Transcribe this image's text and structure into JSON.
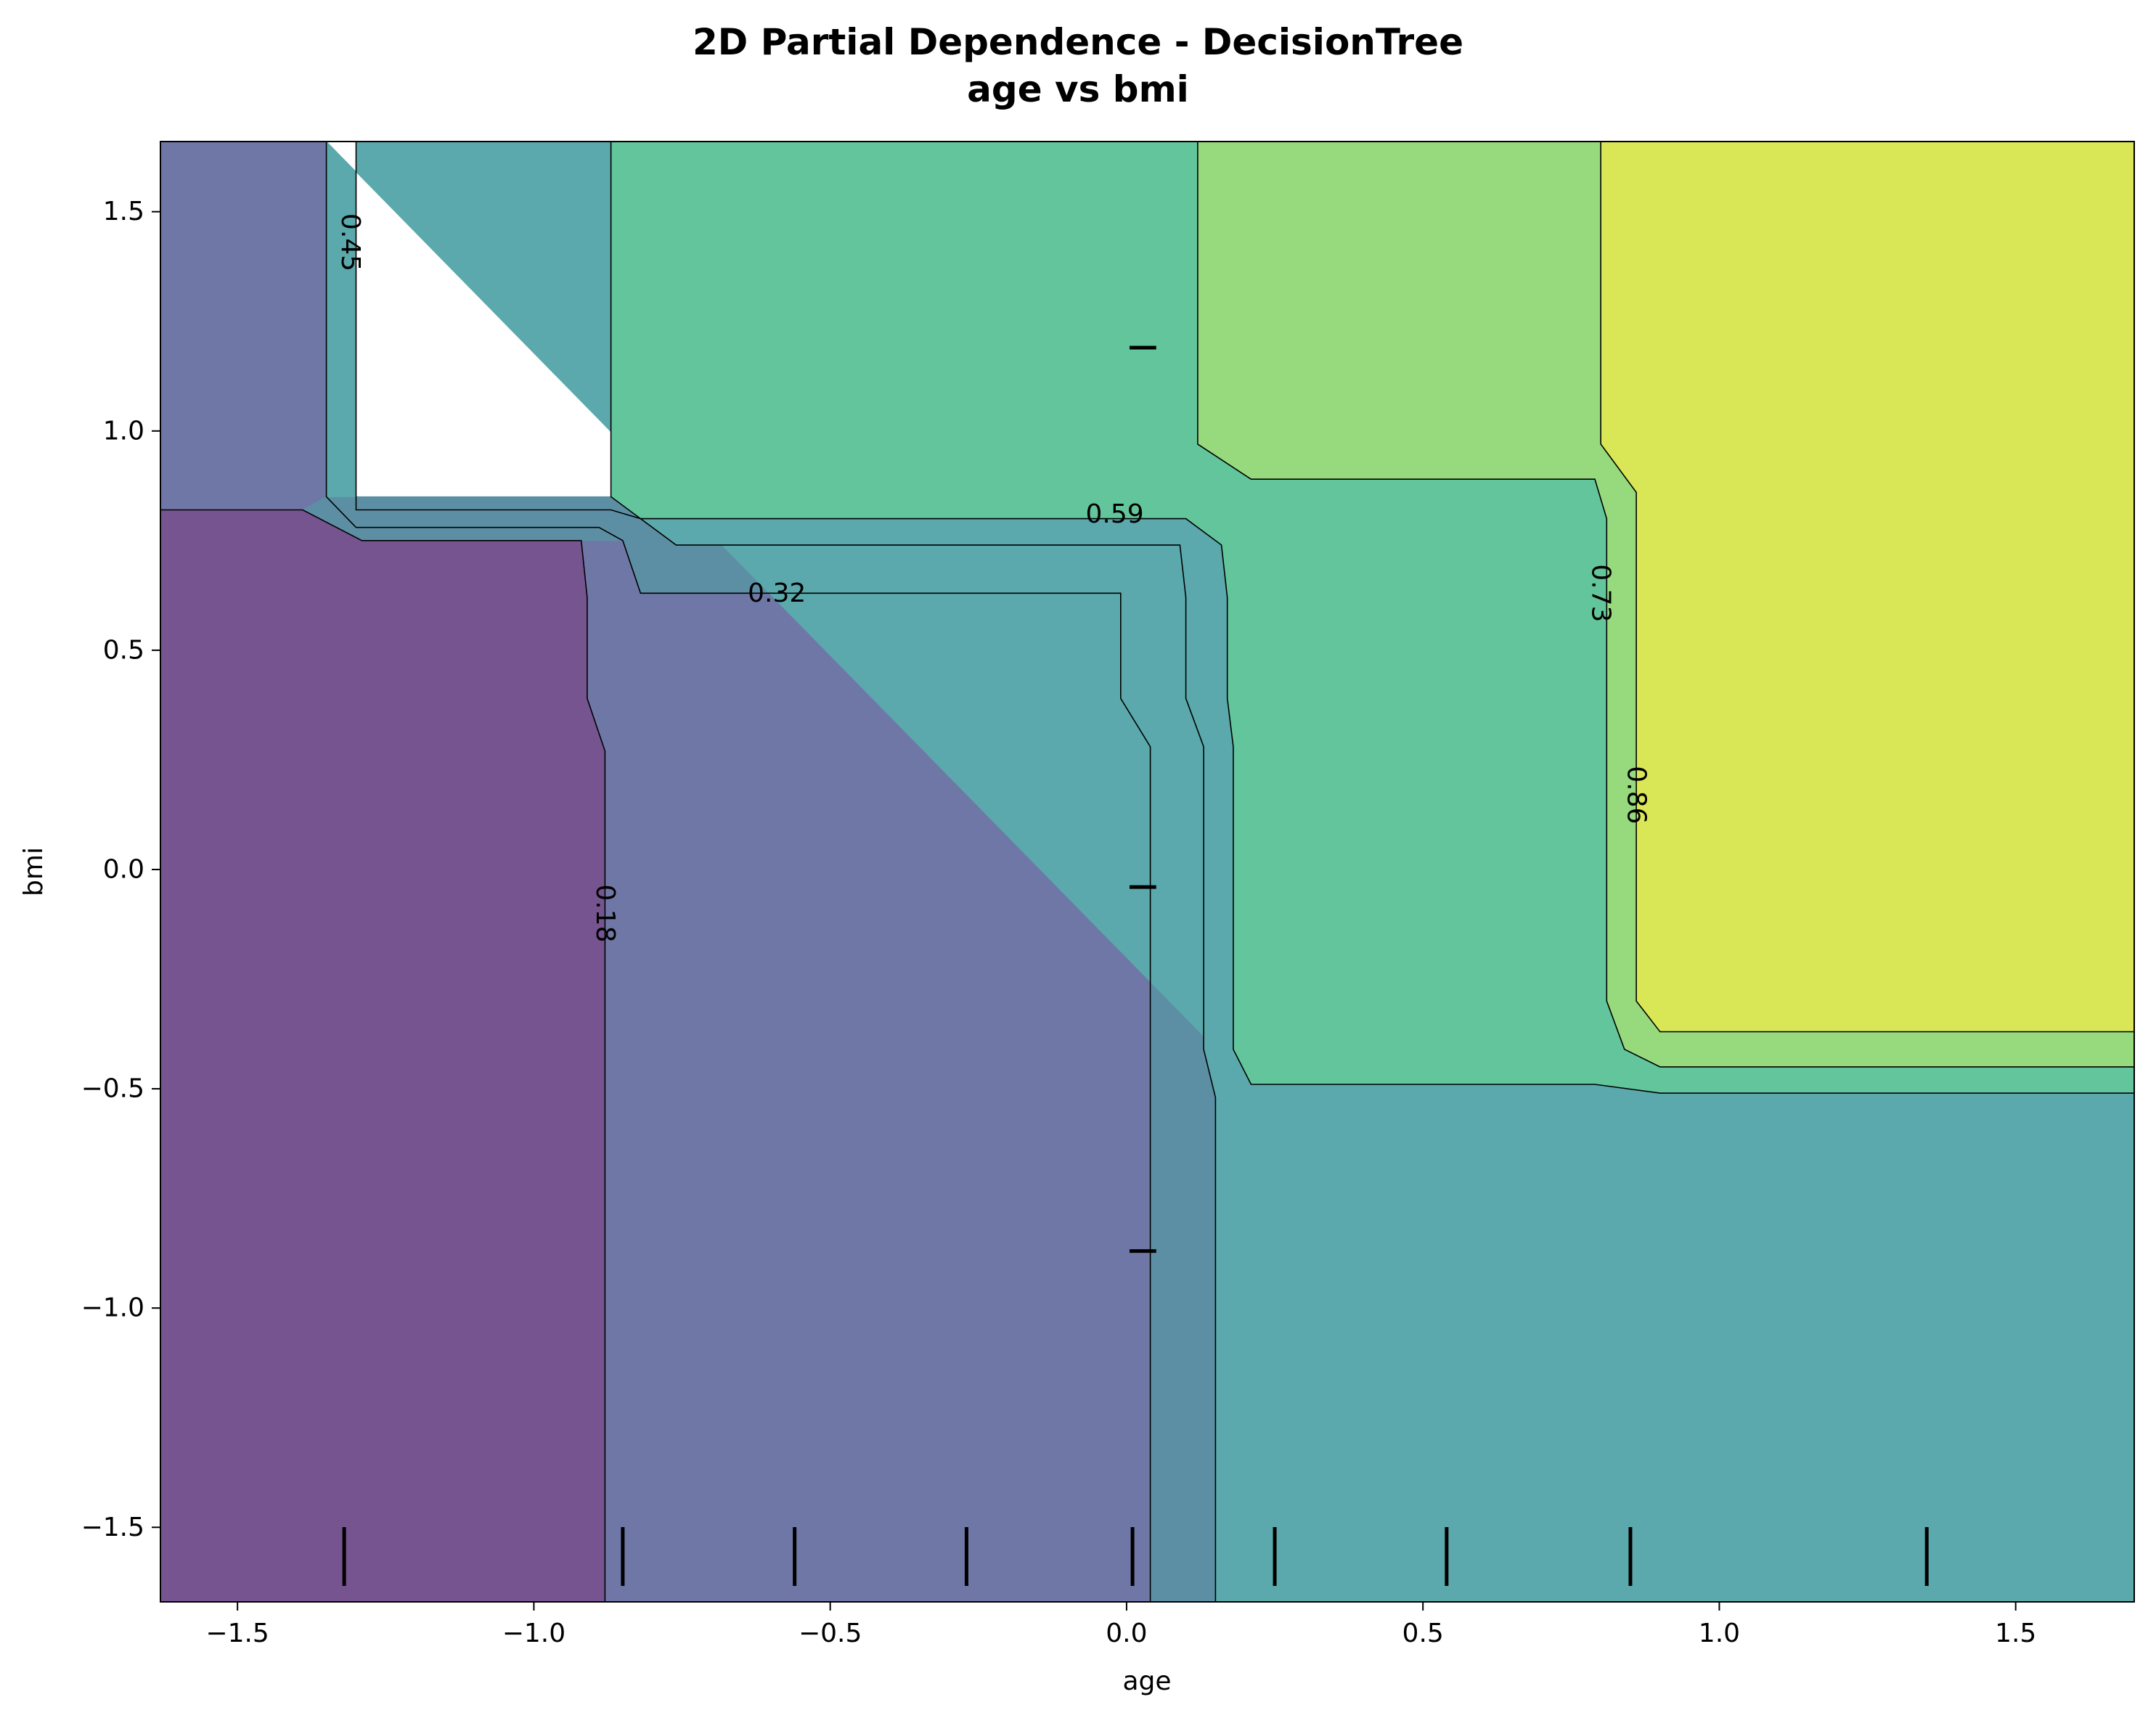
{
  "chart_data": {
    "type": "contour",
    "title_line1": "2D Partial Dependence - DecisionTree",
    "title_line2": "age vs bmi",
    "xlabel": "age",
    "ylabel": "bmi",
    "xlim": [
      -1.63,
      1.7
    ],
    "ylim": [
      -1.67,
      1.66
    ],
    "xticks": [
      -1.5,
      -1.0,
      -0.5,
      0.0,
      0.5,
      1.0,
      1.5
    ],
    "xtick_labels": [
      "−1.5",
      "−1.0",
      "−0.5",
      "0.0",
      "0.5",
      "1.0",
      "1.5"
    ],
    "yticks": [
      -1.5,
      -1.0,
      -0.5,
      0.0,
      0.5,
      1.0,
      1.5
    ],
    "ytick_labels": [
      "−1.5",
      "−1.0",
      "−0.5",
      "0.0",
      "0.5",
      "1.0",
      "1.5"
    ],
    "levels": [
      0.18,
      0.32,
      0.45,
      0.59,
      0.73,
      0.86
    ],
    "contour_labels": [
      {
        "text": "0.18",
        "x": -0.88,
        "y": -0.1,
        "rotation": 90
      },
      {
        "text": "0.32",
        "x": -0.59,
        "y": 0.63,
        "rotation": 0
      },
      {
        "text": "0.45",
        "x": -1.31,
        "y": 1.43,
        "rotation": 90
      },
      {
        "text": "0.59",
        "x": -0.02,
        "y": 0.81,
        "rotation": 0
      },
      {
        "text": "0.73",
        "x": 0.8,
        "y": 0.63,
        "rotation": 90
      },
      {
        "text": "0.86",
        "x": 0.86,
        "y": 0.17,
        "rotation": 90
      }
    ],
    "regions": [
      {
        "value": 0.12,
        "color": "#765490",
        "poly": [
          [
            -1.63,
            -1.67
          ],
          [
            -0.88,
            -1.67
          ],
          [
            -0.88,
            0.27
          ],
          [
            -0.91,
            0.39
          ],
          [
            -0.91,
            0.62
          ],
          [
            -0.92,
            0.75
          ],
          [
            -1.29,
            0.75
          ],
          [
            -1.39,
            0.82
          ],
          [
            -1.63,
            0.82
          ]
        ]
      },
      {
        "value": 0.26,
        "color": "#6F77A6",
        "poly": [
          [
            -0.88,
            -1.67
          ],
          [
            0.04,
            -1.67
          ],
          [
            0.04,
            0.28
          ],
          [
            -0.01,
            0.39
          ],
          [
            -0.01,
            0.63
          ],
          [
            -0.82,
            0.63
          ],
          [
            -0.85,
            0.75
          ],
          [
            -0.92,
            0.75
          ],
          [
            -0.91,
            0.62
          ],
          [
            -0.91,
            0.39
          ],
          [
            -0.88,
            0.27
          ]
        ]
      },
      {
        "value": 0.26,
        "color": "#6F77A6",
        "poly": [
          [
            -1.63,
            0.82
          ],
          [
            -1.39,
            0.82
          ],
          [
            -1.35,
            0.85
          ],
          [
            -1.35,
            1.66
          ],
          [
            -1.63,
            1.66
          ]
        ]
      },
      {
        "value": 0.39,
        "color": "#5D8FA4",
        "poly": [
          [
            0.04,
            -1.67
          ],
          [
            0.15,
            -1.67
          ],
          [
            0.15,
            -0.52
          ],
          [
            0.13,
            -0.41
          ],
          [
            0.13,
            0.28
          ],
          [
            0.1,
            0.39
          ],
          [
            0.1,
            0.62
          ],
          [
            0.09,
            0.74
          ],
          [
            -0.76,
            0.74
          ],
          [
            -0.82,
            0.8
          ],
          [
            -0.87,
            0.85
          ],
          [
            -1.3,
            0.85
          ],
          [
            -1.35,
            0.85
          ],
          [
            -1.39,
            0.82
          ],
          [
            -1.29,
            0.75
          ],
          [
            -0.92,
            0.75
          ],
          [
            -0.85,
            0.75
          ],
          [
            -0.82,
            0.63
          ],
          [
            -0.01,
            0.63
          ],
          [
            -0.01,
            0.39
          ],
          [
            0.04,
            0.28
          ]
        ]
      },
      {
        "value": 0.52,
        "color": "#5BA9AC",
        "poly": [
          [
            0.15,
            -1.67
          ],
          [
            1.7,
            -1.67
          ],
          [
            1.7,
            -0.51
          ],
          [
            0.9,
            -0.51
          ],
          [
            0.79,
            -0.49
          ],
          [
            0.21,
            -0.49
          ],
          [
            0.18,
            -0.41
          ],
          [
            0.18,
            0.28
          ],
          [
            0.17,
            0.39
          ],
          [
            0.17,
            0.62
          ],
          [
            0.16,
            0.74
          ],
          [
            0.1,
            0.8
          ],
          [
            -0.82,
            0.8
          ],
          [
            -0.76,
            0.74
          ],
          [
            0.09,
            0.74
          ],
          [
            0.1,
            0.62
          ],
          [
            0.1,
            0.39
          ],
          [
            0.13,
            0.28
          ],
          [
            0.13,
            -0.41
          ],
          [
            0.15,
            -0.52
          ]
        ]
      },
      {
        "value": 0.52,
        "color": "#5BA9AC",
        "poly": [
          [
            -1.35,
            0.85
          ],
          [
            -1.3,
            0.85
          ],
          [
            -1.3,
            1.66
          ],
          [
            -0.87,
            1.66
          ],
          [
            -0.87,
            0.85
          ],
          [
            -0.82,
            0.8
          ],
          [
            0.1,
            0.8
          ],
          [
            0.16,
            0.74
          ],
          [
            0.17,
            0.62
          ],
          [
            0.17,
            0.39
          ],
          [
            0.18,
            0.28
          ],
          [
            0.18,
            -0.41
          ],
          [
            0.21,
            -0.49
          ],
          [
            0.21,
            -0.49
          ],
          [
            -1.35,
            1.66
          ]
        ]
      },
      {
        "value": 0.66,
        "color": "#63C59B",
        "poly": [
          [
            -0.87,
            1.66
          ],
          [
            0.12,
            1.66
          ],
          [
            0.12,
            0.97
          ],
          [
            0.21,
            0.89
          ],
          [
            0.79,
            0.89
          ],
          [
            0.81,
            0.8
          ],
          [
            0.81,
            -0.3
          ],
          [
            0.84,
            -0.41
          ],
          [
            0.9,
            -0.45
          ],
          [
            1.7,
            -0.45
          ],
          [
            1.7,
            -0.51
          ],
          [
            0.9,
            -0.51
          ],
          [
            0.79,
            -0.49
          ],
          [
            0.21,
            -0.49
          ],
          [
            0.18,
            -0.41
          ],
          [
            0.18,
            0.28
          ],
          [
            0.17,
            0.39
          ],
          [
            0.17,
            0.62
          ],
          [
            0.16,
            0.74
          ],
          [
            0.1,
            0.8
          ],
          [
            -0.82,
            0.8
          ],
          [
            -0.87,
            0.85
          ]
        ]
      },
      {
        "value": 0.79,
        "color": "#97DA7D",
        "poly": [
          [
            0.12,
            1.66
          ],
          [
            0.8,
            1.66
          ],
          [
            0.8,
            0.97
          ],
          [
            0.86,
            0.86
          ],
          [
            0.86,
            -0.3
          ],
          [
            0.9,
            -0.37
          ],
          [
            1.7,
            -0.37
          ],
          [
            1.7,
            -0.45
          ],
          [
            0.9,
            -0.45
          ],
          [
            0.84,
            -0.41
          ],
          [
            0.81,
            -0.3
          ],
          [
            0.81,
            0.8
          ],
          [
            0.79,
            0.89
          ],
          [
            0.21,
            0.89
          ],
          [
            0.12,
            0.97
          ]
        ]
      },
      {
        "value": 0.93,
        "color": "#D9E655",
        "poly": [
          [
            0.8,
            1.66
          ],
          [
            1.7,
            1.66
          ],
          [
            1.7,
            -0.37
          ],
          [
            0.9,
            -0.37
          ],
          [
            0.86,
            -0.3
          ],
          [
            0.86,
            0.86
          ],
          [
            0.8,
            0.97
          ]
        ]
      }
    ],
    "contour_lines": [
      {
        "level": 0.18,
        "points": [
          [
            -0.88,
            -1.67
          ],
          [
            -0.88,
            0.27
          ],
          [
            -0.91,
            0.39
          ],
          [
            -0.91,
            0.62
          ],
          [
            -0.92,
            0.75
          ],
          [
            -1.29,
            0.75
          ],
          [
            -1.39,
            0.82
          ],
          [
            -1.63,
            0.82
          ]
        ]
      },
      {
        "level": 0.32,
        "points": [
          [
            0.04,
            -1.67
          ],
          [
            0.04,
            0.28
          ],
          [
            -0.01,
            0.39
          ],
          [
            -0.01,
            0.63
          ],
          [
            -0.82,
            0.63
          ],
          [
            -0.85,
            0.75
          ],
          [
            -0.89,
            0.78
          ],
          [
            -1.3,
            0.78
          ],
          [
            -1.35,
            0.85
          ],
          [
            -1.35,
            1.66
          ]
        ]
      },
      {
        "level": 0.45,
        "points": [
          [
            0.15,
            -1.67
          ],
          [
            0.15,
            -0.52
          ],
          [
            0.13,
            -0.41
          ],
          [
            0.13,
            0.28
          ],
          [
            0.1,
            0.39
          ],
          [
            0.1,
            0.62
          ],
          [
            0.09,
            0.74
          ],
          [
            -0.76,
            0.74
          ],
          [
            -0.82,
            0.8
          ],
          [
            -0.87,
            0.82
          ],
          [
            -1.3,
            0.82
          ],
          [
            -1.3,
            1.66
          ]
        ]
      },
      {
        "level": 0.59,
        "points": [
          [
            1.7,
            -0.51
          ],
          [
            0.9,
            -0.51
          ],
          [
            0.79,
            -0.49
          ],
          [
            0.21,
            -0.49
          ],
          [
            0.18,
            -0.41
          ],
          [
            0.18,
            0.28
          ],
          [
            0.17,
            0.39
          ],
          [
            0.17,
            0.62
          ],
          [
            0.16,
            0.74
          ],
          [
            0.1,
            0.8
          ],
          [
            -0.82,
            0.8
          ],
          [
            -0.87,
            0.85
          ],
          [
            -0.87,
            1.66
          ]
        ]
      },
      {
        "level": 0.73,
        "points": [
          [
            1.7,
            -0.45
          ],
          [
            0.9,
            -0.45
          ],
          [
            0.84,
            -0.41
          ],
          [
            0.81,
            -0.3
          ],
          [
            0.81,
            0.8
          ],
          [
            0.79,
            0.89
          ],
          [
            0.21,
            0.89
          ],
          [
            0.12,
            0.97
          ],
          [
            0.12,
            1.66
          ]
        ]
      },
      {
        "level": 0.86,
        "points": [
          [
            1.7,
            -0.37
          ],
          [
            0.9,
            -0.37
          ],
          [
            0.86,
            -0.3
          ],
          [
            0.86,
            0.86
          ],
          [
            0.8,
            0.97
          ],
          [
            0.8,
            1.66
          ]
        ]
      }
    ],
    "rug_x_deciles": [
      -1.32,
      -0.85,
      -0.56,
      -0.27,
      0.01,
      0.25,
      0.54,
      0.85,
      1.35
    ],
    "rug_y_deciles": [
      -0.87,
      -0.04,
      1.19
    ]
  }
}
